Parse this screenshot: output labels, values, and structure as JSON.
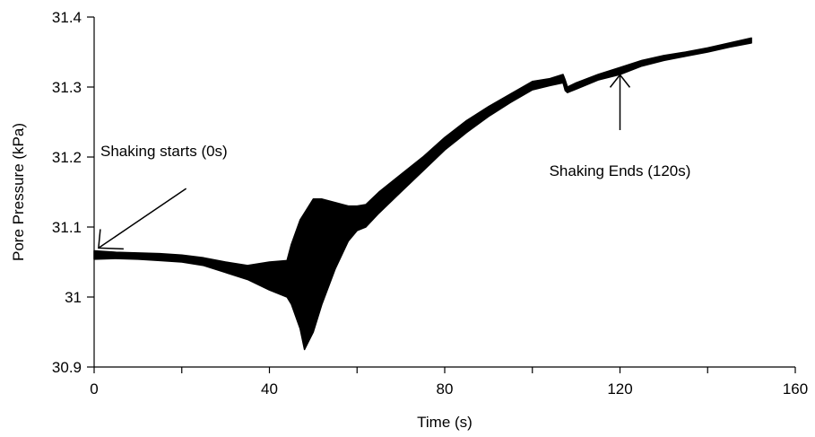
{
  "chart_data": {
    "type": "line",
    "title": "",
    "xlabel": "Time (s)",
    "ylabel": "Pore Pressure (kPa)",
    "xlim": [
      0,
      160
    ],
    "ylim": [
      30.9,
      31.4
    ],
    "x_ticks": [
      0,
      40,
      80,
      120,
      160
    ],
    "x_tick_labels": [
      "0",
      "40",
      "80",
      "120",
      "160"
    ],
    "y_ticks": [
      30.9,
      31.0,
      31.1,
      31.2,
      31.3,
      31.4
    ],
    "y_tick_labels": [
      "30.9",
      "31",
      "31.1",
      "31.2",
      "31.3",
      "31.4"
    ],
    "grid": false,
    "legend": "none",
    "line_color": "#000000",
    "series": [
      {
        "x": [
          0,
          5,
          10,
          15,
          20,
          25,
          30,
          35,
          40,
          44,
          45,
          47,
          48,
          50,
          52,
          55,
          58,
          60,
          62,
          65,
          70,
          75,
          80,
          85,
          90,
          95,
          100,
          104,
          107,
          107.5,
          108,
          110,
          115,
          120,
          125,
          130,
          135,
          140,
          145,
          150
        ],
        "upper": [
          31.066,
          31.064,
          31.063,
          31.062,
          31.06,
          31.056,
          31.05,
          31.045,
          31.05,
          31.052,
          31.075,
          31.11,
          31.12,
          31.14,
          31.14,
          31.135,
          31.13,
          31.13,
          31.132,
          31.15,
          31.175,
          31.2,
          31.228,
          31.252,
          31.272,
          31.29,
          31.308,
          31.312,
          31.318,
          31.31,
          31.3,
          31.306,
          31.318,
          31.328,
          31.338,
          31.345,
          31.35,
          31.356,
          31.363,
          31.37
        ],
        "lower": [
          31.054,
          31.055,
          31.054,
          31.052,
          31.05,
          31.045,
          31.035,
          31.025,
          31.01,
          31.0,
          30.99,
          30.955,
          30.925,
          30.95,
          30.99,
          31.04,
          31.08,
          31.095,
          31.1,
          31.12,
          31.15,
          31.18,
          31.21,
          31.235,
          31.258,
          31.278,
          31.296,
          31.302,
          31.306,
          31.295,
          31.292,
          31.297,
          31.31,
          31.318,
          31.33,
          31.338,
          31.344,
          31.35,
          31.357,
          31.363
        ]
      }
    ],
    "annotations": [
      {
        "text": "Shaking starts (0s)",
        "arrow_to": [
          1,
          31.07
        ],
        "arrow_from": [
          21,
          31.155
        ]
      },
      {
        "text": "Shaking Ends (120s)",
        "arrow_to": [
          120,
          31.32
        ],
        "arrow_from": [
          120,
          31.2
        ]
      }
    ]
  }
}
